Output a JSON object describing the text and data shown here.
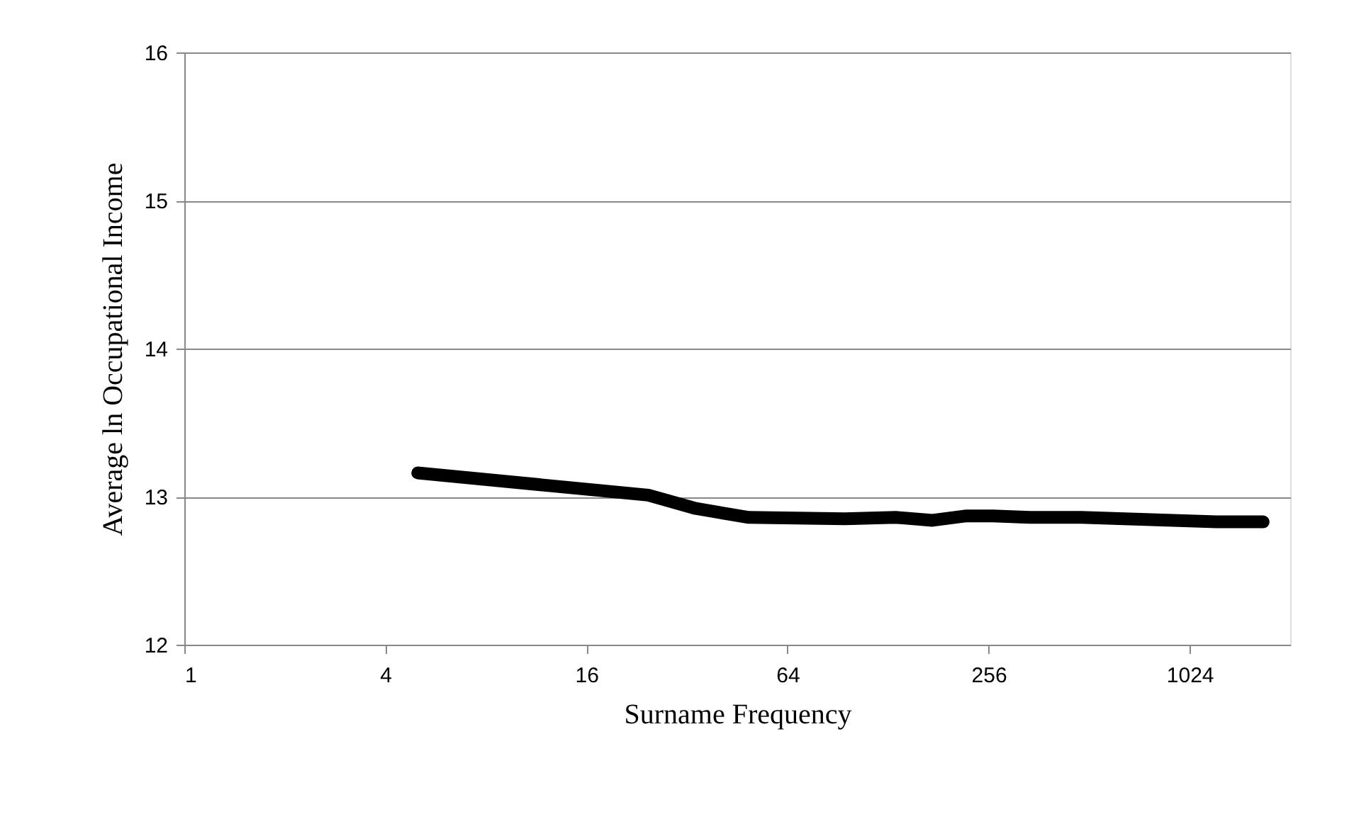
{
  "chart_data": {
    "type": "line",
    "xlabel": "Surname Frequency",
    "ylabel": "Average ln Occupational Income",
    "log": "x",
    "xlim": [
      1,
      2048
    ],
    "xticks": [
      1,
      4,
      16,
      64,
      256,
      1024
    ],
    "ylim": [
      12,
      16
    ],
    "yticks": [
      12,
      13,
      14,
      15,
      16
    ],
    "grid": "y",
    "line_style": "solid",
    "series": [
      {
        "color": "#000000",
        "x": [
          5,
          24.5,
          34,
          49,
          95,
          135,
          174,
          220,
          264,
          340,
          485,
          1230,
          1700
        ],
        "values": [
          13.16,
          13.01,
          12.92,
          12.86,
          12.85,
          12.86,
          12.84,
          12.87,
          12.87,
          12.86,
          12.86,
          12.83,
          12.83
        ]
      }
    ]
  }
}
